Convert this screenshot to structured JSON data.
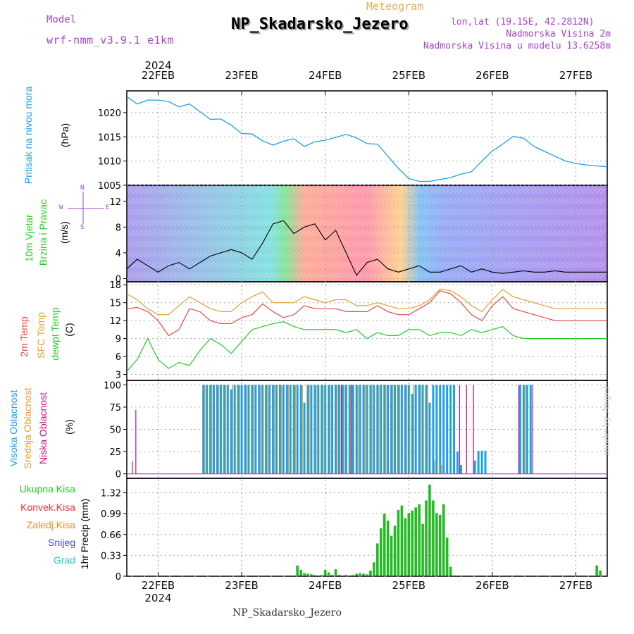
{
  "header": {
    "model_label": "Model",
    "model_name": "wrf-nmm_v3.9.1 e1km",
    "title_small": "Meteogram",
    "station": "NP_Skadarsko_Jezero",
    "lonlat": "lon,lat (19.15E, 42.2812N)",
    "alt1": "Nadmorska Visina 2m",
    "alt2": "Nadmorska Visina u modelu 13.6258m"
  },
  "footer": {
    "station": "NP_Skadarsko_Jezero",
    "watermark": "made by Angel"
  },
  "colors": {
    "pressure": "#1ea0e8",
    "wind_label": "#22cc22",
    "temp2m": "#e84848",
    "sfc": "#e0a030",
    "dew": "#22cc22",
    "high": "#1ea0e8",
    "mid": "#e0a030",
    "low": "#cc1177",
    "precip": "#22bb22",
    "conv": "#ee3333",
    "froz": "#ff8822",
    "snow": "#4444dd",
    "grad": "#22cccc",
    "purple": "#aa44cc"
  },
  "time_axis": {
    "year": "2024",
    "days": [
      "22FEB",
      "23FEB",
      "24FEB",
      "25FEB",
      "26FEB",
      "27FEB"
    ],
    "start_hour_offset": -9,
    "end_hour_offset": 129
  },
  "panels": {
    "pressure": {
      "label1": "Pritisak na nivou mora",
      "label2": "(hPa)",
      "ticks": [
        1005,
        1010,
        1015,
        1020
      ]
    },
    "wind": {
      "label1": "10m Vjetar",
      "label2": "Brzina i Pravac",
      "label3": "(m/s)",
      "ticks": [
        0,
        4,
        8,
        12
      ],
      "compass": {
        "w": "W",
        "e": "E",
        "n": "N",
        "s": "S"
      }
    },
    "temp": {
      "label1": "2m Temp",
      "label2": "SFC Temp",
      "label3": "dewpt Temp",
      "label4": "(C)",
      "ticks": [
        3,
        6,
        9,
        12,
        15,
        18
      ]
    },
    "cloud": {
      "label1": "Visoka Oblacnost",
      "label2": "Srednja Oblacnost",
      "label3": "Niska Oblacnost",
      "label4": "(%)",
      "ticks": [
        0,
        25,
        50,
        75,
        100
      ]
    },
    "precip": {
      "legend": [
        "Ukupna Kisa",
        "Konvek.Kisa",
        "Zaledj.Kisa",
        "Snijeg",
        "Grad"
      ],
      "ylabel": "1hr Precip (mm)",
      "ticks": [
        "0",
        "0.33",
        "0.66",
        "0.99",
        "1.32"
      ]
    }
  },
  "chart_data": {
    "type": "line",
    "x_unit": "hours from 22FEB 00UTC",
    "pressure": {
      "x": [
        -9,
        -6,
        -3,
        0,
        3,
        6,
        9,
        12,
        15,
        18,
        21,
        24,
        27,
        30,
        33,
        36,
        39,
        42,
        45,
        48,
        51,
        54,
        57,
        60,
        63,
        66,
        69,
        72,
        75,
        78,
        81,
        84,
        87,
        90,
        93,
        96,
        99,
        102,
        105,
        108,
        111,
        114,
        117,
        120,
        123,
        126,
        129
      ],
      "y": [
        1023.3,
        1021.8,
        1022.6,
        1022.6,
        1022.3,
        1021.2,
        1021.8,
        1020.2,
        1018.6,
        1018.7,
        1017.4,
        1015.7,
        1015.6,
        1014.2,
        1013.3,
        1014.1,
        1014.6,
        1013.0,
        1014.0,
        1014.3,
        1014.9,
        1015.5,
        1014.8,
        1013.6,
        1013.5,
        1011.0,
        1008.5,
        1006.4,
        1005.8,
        1005.8,
        1006.2,
        1006.6,
        1007.3,
        1007.8,
        1010.0,
        1012.1,
        1013.5,
        1015.1,
        1014.7,
        1013.0,
        1012.0,
        1011.0,
        1010.0,
        1009.5,
        1009.2,
        1009.0,
        1008.8
      ]
    },
    "wind_speed": {
      "x": [
        -9,
        -6,
        -3,
        0,
        3,
        6,
        9,
        12,
        15,
        18,
        21,
        24,
        27,
        30,
        33,
        36,
        39,
        42,
        45,
        48,
        51,
        54,
        57,
        60,
        63,
        66,
        69,
        72,
        75,
        78,
        81,
        84,
        87,
        90,
        93,
        96,
        99,
        102,
        105,
        108,
        111,
        114,
        117,
        120,
        123,
        126,
        129
      ],
      "y": [
        1.5,
        3.0,
        2.0,
        1.0,
        2.0,
        2.5,
        1.5,
        2.5,
        3.5,
        4.0,
        4.5,
        4.0,
        3.0,
        5.5,
        8.5,
        9.0,
        7.0,
        8.0,
        8.5,
        6.0,
        7.5,
        4.0,
        0.5,
        2.5,
        3.0,
        1.5,
        1.0,
        1.5,
        2.0,
        1.0,
        1.0,
        1.5,
        2.0,
        1.0,
        1.5,
        1.0,
        0.8,
        1.0,
        1.2,
        1.0,
        1.0,
        1.2,
        1.0,
        1.0,
        1.0,
        1.0,
        1.0
      ]
    },
    "temp2m": {
      "x": [
        -9,
        -6,
        -3,
        0,
        3,
        6,
        9,
        12,
        15,
        18,
        21,
        24,
        27,
        30,
        33,
        36,
        39,
        42,
        45,
        48,
        51,
        54,
        57,
        60,
        63,
        66,
        69,
        72,
        75,
        78,
        81,
        84,
        87,
        90,
        93,
        96,
        99,
        102,
        105,
        108,
        111,
        114,
        117,
        120,
        123,
        126,
        129
      ],
      "y": [
        14.0,
        14.2,
        13.5,
        12.0,
        9.5,
        10.5,
        14.0,
        13.5,
        12.0,
        11.5,
        11.5,
        12.5,
        13.0,
        14.8,
        13.5,
        12.5,
        13.0,
        14.5,
        14.0,
        14.0,
        14.0,
        13.5,
        13.5,
        13.5,
        14.5,
        13.5,
        13.0,
        13.0,
        14.0,
        15.0,
        17.0,
        16.5,
        15.0,
        13.0,
        12.0,
        14.5,
        16.0,
        14.0,
        13.5,
        13.0,
        12.5,
        12.0,
        12.0,
        12.0,
        12.0,
        12.0,
        12.0
      ]
    },
    "sfc_temp": {
      "x": [
        -9,
        -6,
        -3,
        0,
        3,
        6,
        9,
        12,
        15,
        18,
        21,
        24,
        27,
        30,
        33,
        36,
        39,
        42,
        45,
        48,
        51,
        54,
        57,
        60,
        63,
        66,
        69,
        72,
        75,
        78,
        81,
        84,
        87,
        90,
        93,
        96,
        99,
        102,
        105,
        108,
        111,
        114,
        117,
        120,
        123,
        126,
        129
      ],
      "y": [
        16.5,
        15.5,
        14.0,
        13.0,
        13.0,
        14.5,
        16.0,
        15.0,
        14.0,
        13.5,
        13.5,
        15.0,
        16.0,
        16.8,
        15.0,
        15.0,
        15.0,
        16.0,
        15.5,
        15.0,
        15.5,
        15.5,
        14.5,
        14.5,
        15.0,
        14.5,
        14.0,
        14.0,
        14.5,
        15.5,
        17.3,
        17.0,
        16.0,
        14.5,
        13.5,
        15.5,
        17.2,
        16.0,
        15.5,
        15.0,
        14.5,
        14.0,
        14.0,
        14.0,
        14.0,
        14.0,
        14.0
      ]
    },
    "dewpoint": {
      "x": [
        -9,
        -6,
        -3,
        0,
        3,
        6,
        9,
        12,
        15,
        18,
        21,
        24,
        27,
        30,
        33,
        36,
        39,
        42,
        45,
        48,
        51,
        54,
        57,
        60,
        63,
        66,
        69,
        72,
        75,
        78,
        81,
        84,
        87,
        90,
        93,
        96,
        99,
        102,
        105,
        108,
        111,
        114,
        117,
        120,
        123,
        126,
        129
      ],
      "y": [
        3.5,
        5.5,
        9.0,
        5.5,
        4.0,
        5.0,
        4.5,
        7.0,
        9.0,
        8.0,
        6.5,
        8.5,
        10.5,
        11.0,
        11.5,
        11.8,
        11.0,
        10.5,
        10.5,
        10.5,
        10.5,
        10.0,
        10.5,
        9.0,
        10.0,
        9.5,
        9.5,
        10.5,
        10.5,
        9.5,
        10.0,
        10.0,
        9.5,
        10.5,
        10.0,
        10.5,
        11.0,
        9.5,
        9.0,
        9.0,
        9.0,
        9.0,
        9.0,
        9.0,
        9.0,
        9.0,
        9.0
      ]
    },
    "clouds": {
      "low_x": [
        -7,
        -6,
        53,
        56,
        87,
        89,
        91,
        104,
        108
      ],
      "low_y": [
        14,
        72,
        100,
        100,
        100,
        100,
        100,
        100,
        100
      ],
      "high_x": [
        13,
        14,
        15,
        16,
        17,
        18,
        19,
        20,
        21,
        22,
        23,
        24,
        25,
        26,
        27,
        28,
        29,
        30,
        31,
        32,
        33,
        34,
        35,
        36,
        37,
        38,
        39,
        40,
        41,
        42,
        43,
        44,
        45,
        46,
        47,
        48,
        49,
        50,
        51,
        52,
        53,
        54,
        55,
        56,
        57,
        58,
        59,
        60,
        61,
        62,
        63,
        64,
        65,
        66,
        67,
        68,
        69,
        70,
        71,
        72,
        73,
        74,
        75,
        76,
        77,
        78,
        79,
        80,
        81,
        82,
        83,
        84,
        85,
        86,
        87,
        88,
        89,
        90,
        91,
        92,
        93,
        94,
        95,
        96,
        97,
        98,
        99,
        100,
        101,
        102,
        103,
        104,
        105,
        106,
        107,
        108
      ],
      "high_y": [
        100,
        100,
        100,
        100,
        100,
        100,
        100,
        100,
        95,
        100,
        100,
        100,
        100,
        100,
        100,
        100,
        100,
        100,
        100,
        100,
        100,
        100,
        100,
        100,
        100,
        100,
        100,
        100,
        100,
        80,
        100,
        100,
        100,
        100,
        100,
        100,
        100,
        100,
        100,
        100,
        100,
        100,
        100,
        100,
        100,
        100,
        100,
        100,
        100,
        100,
        100,
        100,
        100,
        100,
        100,
        100,
        100,
        100,
        100,
        100,
        90,
        100,
        100,
        100,
        100,
        80,
        100,
        100,
        100,
        100,
        100,
        100,
        100,
        25,
        10,
        0,
        0,
        0,
        15,
        26,
        26,
        26,
        0,
        0,
        0,
        0,
        0,
        0,
        0,
        0,
        0,
        100,
        100,
        100,
        100,
        0
      ],
      "mid_x": [
        13,
        15,
        17,
        19,
        21,
        23,
        25,
        27,
        29,
        31,
        33,
        35,
        37,
        39,
        41,
        43,
        45,
        47,
        49,
        51,
        53,
        55,
        57,
        59,
        61,
        63,
        65,
        67,
        69,
        71,
        73,
        75,
        77,
        79,
        81,
        83,
        85,
        87,
        89,
        91,
        93,
        95,
        97,
        99,
        101,
        103,
        105,
        107
      ],
      "mid_y": [
        100,
        100,
        100,
        100,
        100,
        100,
        100,
        100,
        100,
        100,
        100,
        100,
        100,
        100,
        100,
        100,
        100,
        100,
        100,
        100,
        100,
        100,
        100,
        100,
        100,
        100,
        100,
        100,
        100,
        100,
        100,
        100,
        100,
        15,
        10,
        0,
        0,
        0,
        0,
        0,
        0,
        0,
        0,
        0,
        0,
        0,
        100,
        0
      ]
    },
    "precip": {
      "x": [
        40,
        41,
        42,
        43,
        44,
        45,
        46,
        47,
        48,
        49,
        50,
        51,
        52,
        53,
        54,
        55,
        56,
        57,
        58,
        59,
        60,
        61,
        62,
        63,
        64,
        65,
        66,
        67,
        68,
        69,
        70,
        71,
        72,
        73,
        74,
        75,
        76,
        77,
        78,
        79,
        80,
        81,
        82,
        83,
        84,
        85,
        86,
        87,
        88,
        89,
        90,
        91,
        92,
        93,
        94,
        95,
        96,
        97,
        98,
        99,
        100,
        101,
        102,
        103,
        104,
        105,
        106,
        107,
        108,
        109,
        110,
        111,
        112,
        113,
        114,
        115,
        116,
        117,
        118,
        119,
        120,
        121,
        122,
        123,
        124,
        125,
        126,
        127,
        128
      ],
      "y": [
        0.17,
        0.1,
        0.05,
        0.04,
        0.03,
        0.02,
        0.0,
        0.02,
        0.1,
        0.06,
        0.02,
        0.11,
        0.02,
        0.0,
        0.02,
        0.0,
        0.02,
        0.04,
        0.05,
        0.04,
        0.03,
        0.09,
        0.22,
        0.52,
        0.76,
        0.99,
        0.88,
        0.64,
        0.8,
        1.05,
        1.12,
        0.92,
        1.0,
        1.04,
        1.09,
        1.14,
        0.83,
        1.2,
        1.45,
        1.2,
        1.0,
        0.97,
        1.14,
        0.61,
        0.15,
        0,
        0,
        0,
        0,
        0,
        0,
        0,
        0,
        0,
        0,
        0,
        0,
        0,
        0,
        0,
        0,
        0,
        0,
        0,
        0,
        0,
        0,
        0,
        0,
        0,
        0,
        0,
        0,
        0,
        0,
        0,
        0,
        0,
        0,
        0,
        0,
        0,
        0,
        0,
        0,
        0,
        0.17,
        0.09,
        0
      ]
    }
  }
}
